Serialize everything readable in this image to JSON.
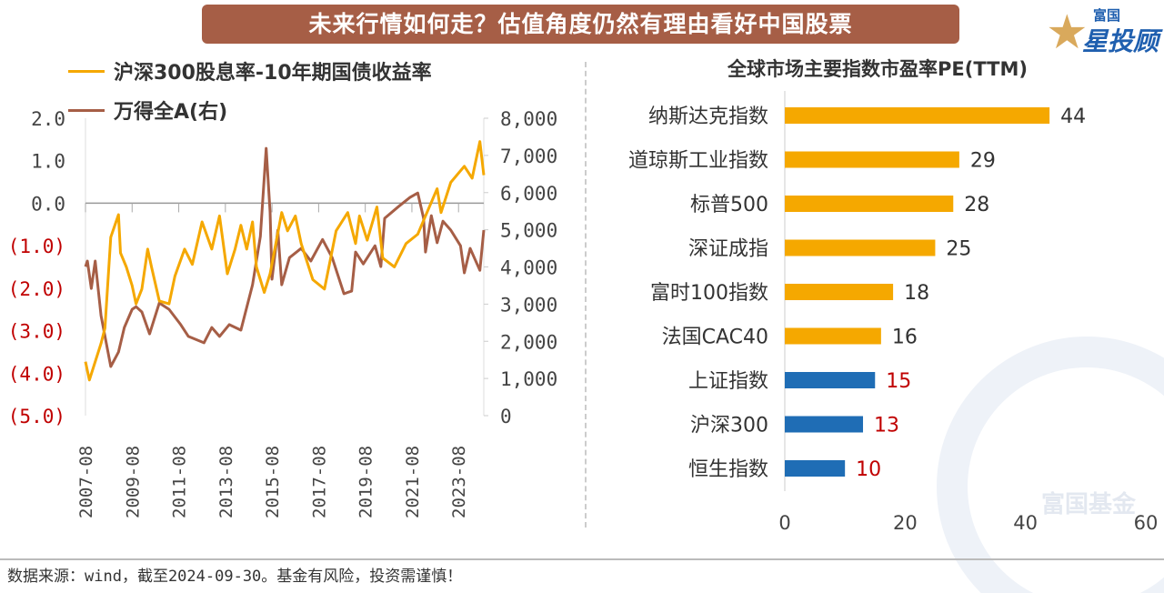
{
  "title": "未来行情如何走？估值角度仍然有理由看好中国股票",
  "logo": {
    "text_top": "富国",
    "text_main": "星投顾",
    "watermark": "富国基金"
  },
  "footer": "数据来源：wind，截至2024-09-30。基金有风险，投资需谨慎！",
  "colors": {
    "yellow": "#F5A800",
    "brown": "#A65E46",
    "blue": "#1F6DB5",
    "negative_label": "#C00000"
  },
  "chart_data": [
    {
      "type": "line",
      "legend_placement": "top-left",
      "left_axis": {
        "ticks": [
          "2.0",
          "1.0",
          "0.0",
          "(1.0)",
          "(2.0)",
          "(3.0)",
          "(4.0)",
          "(5.0)"
        ],
        "range": [
          -5,
          2
        ]
      },
      "right_axis": {
        "ticks": [
          "8,000",
          "7,000",
          "6,000",
          "5,000",
          "4,000",
          "3,000",
          "2,000",
          "1,000",
          "0"
        ],
        "range": [
          0,
          8000
        ]
      },
      "x_ticks": [
        "2007-08",
        "2009-08",
        "2011-08",
        "2013-08",
        "2015-08",
        "2017-08",
        "2019-08",
        "2021-08",
        "2023-08"
      ],
      "x_range": [
        "2007-08",
        "2024-09"
      ],
      "series": [
        {
          "name": "沪深300股息率-10年期国债收益率",
          "axis": "left",
          "color": "#F5A800",
          "points": [
            [
              "2007-08",
              -3.73
            ],
            [
              "2007-10",
              -4.16
            ],
            [
              "2008-04",
              -3.3
            ],
            [
              "2008-06",
              -2.94
            ],
            [
              "2008-09",
              -0.8
            ],
            [
              "2009-01",
              -0.27
            ],
            [
              "2009-02",
              -1.17
            ],
            [
              "2009-05",
              -1.5
            ],
            [
              "2009-08",
              -1.94
            ],
            [
              "2009-10",
              -2.37
            ],
            [
              "2010-01",
              -2.02
            ],
            [
              "2010-04",
              -1.08
            ],
            [
              "2010-06",
              -1.5
            ],
            [
              "2010-10",
              -2.3
            ],
            [
              "2011-03",
              -2.37
            ],
            [
              "2011-06",
              -1.72
            ],
            [
              "2011-11",
              -1.08
            ],
            [
              "2012-03",
              -1.44
            ],
            [
              "2012-08",
              -0.44
            ],
            [
              "2013-01",
              -1.08
            ],
            [
              "2013-05",
              -0.3
            ],
            [
              "2013-09",
              -1.66
            ],
            [
              "2014-01",
              -1.08
            ],
            [
              "2014-04",
              -0.52
            ],
            [
              "2014-07",
              -1.08
            ],
            [
              "2014-10",
              -0.44
            ],
            [
              "2014-12",
              -1.5
            ],
            [
              "2015-04",
              -2.1
            ],
            [
              "2015-07",
              -1.66
            ],
            [
              "2016-01",
              -0.22
            ],
            [
              "2016-04",
              -0.65
            ],
            [
              "2016-08",
              -0.3
            ],
            [
              "2016-11",
              -0.95
            ],
            [
              "2017-05",
              -1.8
            ],
            [
              "2017-11",
              -2.02
            ],
            [
              "2018-05",
              -0.65
            ],
            [
              "2018-11",
              -0.22
            ],
            [
              "2019-03",
              -0.95
            ],
            [
              "2019-05",
              -0.3
            ],
            [
              "2019-09",
              -0.87
            ],
            [
              "2020-02",
              -0.09
            ],
            [
              "2020-05",
              -1.29
            ],
            [
              "2020-11",
              -1.5
            ],
            [
              "2021-05",
              -0.95
            ],
            [
              "2021-11",
              -0.73
            ],
            [
              "2022-03",
              -0.3
            ],
            [
              "2022-09",
              0.34
            ],
            [
              "2022-11",
              -0.22
            ],
            [
              "2023-04",
              0.49
            ],
            [
              "2023-11",
              0.87
            ],
            [
              "2024-03",
              0.59
            ],
            [
              "2024-07",
              1.45
            ],
            [
              "2024-09",
              0.66
            ]
          ]
        },
        {
          "name": "万得全A(右)",
          "axis": "right",
          "color": "#A65E46",
          "points": [
            [
              "2007-08",
              4010
            ],
            [
              "2007-09",
              4160
            ],
            [
              "2007-11",
              3420
            ],
            [
              "2008-01",
              4160
            ],
            [
              "2008-04",
              2690
            ],
            [
              "2008-09",
              1320
            ],
            [
              "2009-01",
              1710
            ],
            [
              "2009-04",
              2370
            ],
            [
              "2009-08",
              2860
            ],
            [
              "2009-10",
              2930
            ],
            [
              "2010-01",
              2790
            ],
            [
              "2010-05",
              2200
            ],
            [
              "2010-10",
              3030
            ],
            [
              "2011-03",
              2860
            ],
            [
              "2011-09",
              2450
            ],
            [
              "2012-01",
              2130
            ],
            [
              "2012-09",
              1960
            ],
            [
              "2013-01",
              2370
            ],
            [
              "2013-05",
              2130
            ],
            [
              "2013-10",
              2450
            ],
            [
              "2014-04",
              2300
            ],
            [
              "2014-10",
              3520
            ],
            [
              "2015-02",
              4820
            ],
            [
              "2015-05",
              7190
            ],
            [
              "2015-07",
              5480
            ],
            [
              "2015-08",
              3670
            ],
            [
              "2015-11",
              4990
            ],
            [
              "2016-01",
              3520
            ],
            [
              "2016-05",
              4250
            ],
            [
              "2016-11",
              4500
            ],
            [
              "2017-04",
              4160
            ],
            [
              "2017-10",
              4740
            ],
            [
              "2018-03",
              4250
            ],
            [
              "2018-09",
              3280
            ],
            [
              "2019-01",
              3350
            ],
            [
              "2019-03",
              4400
            ],
            [
              "2019-07",
              4080
            ],
            [
              "2020-01",
              4570
            ],
            [
              "2020-04",
              4010
            ],
            [
              "2020-06",
              5310
            ],
            [
              "2021-01",
              5620
            ],
            [
              "2021-07",
              5870
            ],
            [
              "2021-11",
              5990
            ],
            [
              "2022-02",
              5310
            ],
            [
              "2022-03",
              4400
            ],
            [
              "2022-06",
              5380
            ],
            [
              "2022-09",
              4650
            ],
            [
              "2022-12",
              5230
            ],
            [
              "2023-04",
              4990
            ],
            [
              "2023-09",
              4570
            ],
            [
              "2023-11",
              3840
            ],
            [
              "2024-02",
              4500
            ],
            [
              "2024-07",
              3910
            ],
            [
              "2024-09",
              4990
            ]
          ]
        }
      ]
    },
    {
      "type": "bar",
      "orientation": "horizontal",
      "title": "全球市场主要指数市盈率PE(TTM)",
      "categories": [
        "纳斯达克指数",
        "道琼斯工业指数",
        "标普500",
        "深证成指",
        "富时100指数",
        "法国CAC40",
        "上证指数",
        "沪深300",
        "恒生指数"
      ],
      "values": [
        44,
        29,
        28,
        25,
        18,
        16,
        15,
        13,
        10
      ],
      "bar_colors": [
        "#F5A800",
        "#F5A800",
        "#F5A800",
        "#F5A800",
        "#F5A800",
        "#F5A800",
        "#1F6DB5",
        "#1F6DB5",
        "#1F6DB5"
      ],
      "label_colors": [
        "#333333",
        "#333333",
        "#333333",
        "#333333",
        "#333333",
        "#333333",
        "#C00000",
        "#C00000",
        "#C00000"
      ],
      "x_ticks": [
        "0",
        "20",
        "40",
        "60"
      ],
      "xlim": [
        0,
        60
      ]
    }
  ]
}
